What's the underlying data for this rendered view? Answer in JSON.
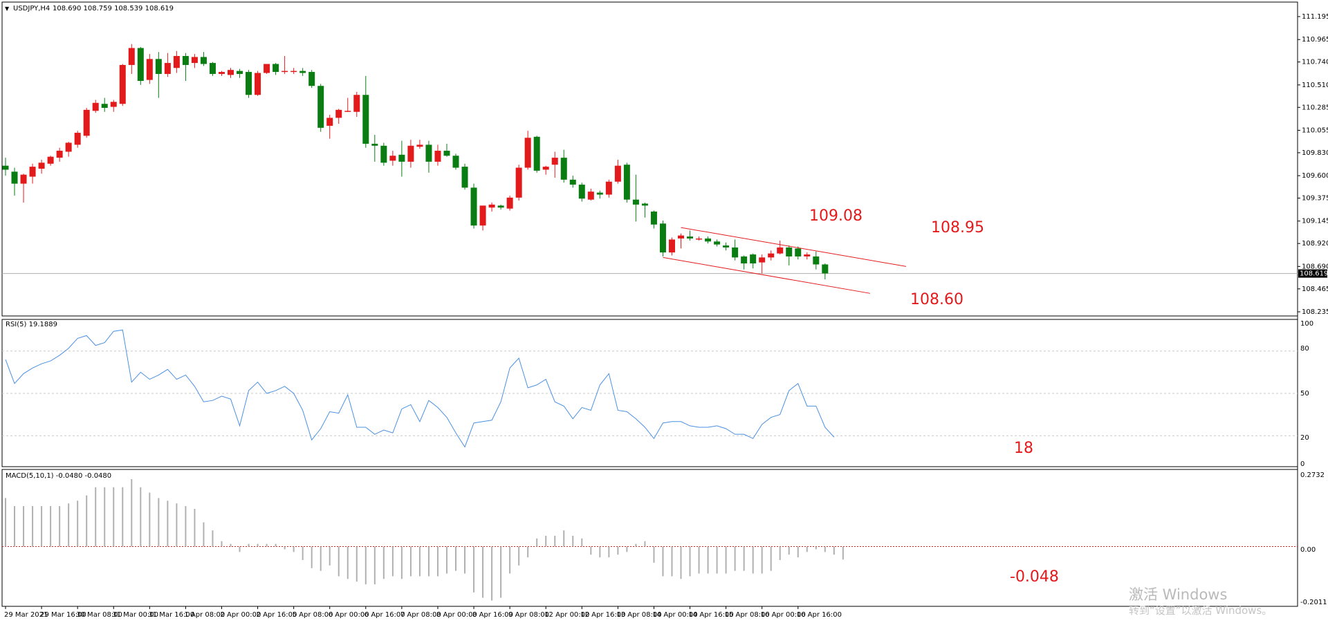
{
  "window_title": "USDJPY,H4",
  "ohlc_readout": "108.690 108.759 108.539 108.619",
  "colors": {
    "bull": "#e31a1c",
    "bear": "#0a7d12",
    "grid": "#c8c8c8",
    "rsi_line": "#4a90e2",
    "annotation": "#e31a1c",
    "channel": "#e31a1c",
    "macd_bar": "#b0b0b0",
    "macd_zero": "#e31a1c",
    "price_line": "#b0b0b0"
  },
  "price_axis": {
    "ticks": [
      "111.195",
      "110.965",
      "110.740",
      "110.510",
      "110.285",
      "110.055",
      "109.830",
      "109.600",
      "109.375",
      "109.145",
      "108.920",
      "108.690",
      "108.465",
      "108.235"
    ],
    "current_price": "108.619"
  },
  "rsi": {
    "label": "RSI(5) 19.1889",
    "ticks": [
      "100",
      "80",
      "50",
      "20",
      "0"
    ]
  },
  "macd": {
    "label": "MACD(5,10,1) -0.0480 -0.0480",
    "ticks": [
      "0.2732",
      "0.00",
      "-0.2011"
    ]
  },
  "time_axis": [
    "29 Mar 2021",
    "29 Mar 16:00",
    "30 Mar 08:00",
    "31 Mar 00:00",
    "31 Mar 16:00",
    "1 Apr 08:00",
    "2 Apr 00:00",
    "2 Apr 16:00",
    "5 Apr 08:00",
    "6 Apr 00:00",
    "6 Apr 16:00",
    "7 Apr 08:00",
    "8 Apr 00:00",
    "8 Apr 16:00",
    "9 Apr 08:00",
    "12 Apr 00:00",
    "12 Apr 16:00",
    "13 Apr 08:00",
    "14 Apr 00:00",
    "14 Apr 16:00",
    "15 Apr 08:00",
    "16 Apr 00:00",
    "16 Apr 16:00"
  ],
  "annotations": {
    "high1": "109.08",
    "high2": "108.95",
    "low": "108.60",
    "rsi_value": "18",
    "macd_value": "-0.048"
  },
  "watermark": {
    "line1": "激活 Windows",
    "line2": "转到“设置”以激活 Windows。"
  },
  "chart_data": [
    {
      "type": "candlestick",
      "title": "USDJPY,H4",
      "ylim": [
        108.235,
        111.195
      ],
      "candles": [
        {
          "o": 109.7,
          "h": 109.78,
          "l": 109.6,
          "c": 109.66
        },
        {
          "o": 109.64,
          "h": 109.68,
          "l": 109.4,
          "c": 109.52
        },
        {
          "o": 109.52,
          "h": 109.62,
          "l": 109.33,
          "c": 109.61
        },
        {
          "o": 109.59,
          "h": 109.72,
          "l": 109.52,
          "c": 109.69
        },
        {
          "o": 109.67,
          "h": 109.76,
          "l": 109.62,
          "c": 109.73
        },
        {
          "o": 109.72,
          "h": 109.8,
          "l": 109.7,
          "c": 109.79
        },
        {
          "o": 109.78,
          "h": 109.88,
          "l": 109.74,
          "c": 109.85
        },
        {
          "o": 109.84,
          "h": 109.94,
          "l": 109.79,
          "c": 109.93
        },
        {
          "o": 109.91,
          "h": 110.05,
          "l": 109.88,
          "c": 110.03
        },
        {
          "o": 110.0,
          "h": 110.28,
          "l": 109.98,
          "c": 110.26
        },
        {
          "o": 110.25,
          "h": 110.36,
          "l": 110.23,
          "c": 110.33
        },
        {
          "o": 110.32,
          "h": 110.38,
          "l": 110.24,
          "c": 110.28
        },
        {
          "o": 110.29,
          "h": 110.36,
          "l": 110.24,
          "c": 110.34
        },
        {
          "o": 110.32,
          "h": 110.72,
          "l": 110.3,
          "c": 110.71
        },
        {
          "o": 110.71,
          "h": 110.92,
          "l": 110.62,
          "c": 110.88
        },
        {
          "o": 110.88,
          "h": 110.89,
          "l": 110.51,
          "c": 110.55
        },
        {
          "o": 110.56,
          "h": 110.82,
          "l": 110.52,
          "c": 110.77
        },
        {
          "o": 110.77,
          "h": 110.84,
          "l": 110.38,
          "c": 110.62
        },
        {
          "o": 110.62,
          "h": 110.83,
          "l": 110.59,
          "c": 110.73
        },
        {
          "o": 110.68,
          "h": 110.85,
          "l": 110.63,
          "c": 110.8
        },
        {
          "o": 110.8,
          "h": 110.83,
          "l": 110.55,
          "c": 110.71
        },
        {
          "o": 110.73,
          "h": 110.82,
          "l": 110.68,
          "c": 110.79
        },
        {
          "o": 110.79,
          "h": 110.84,
          "l": 110.7,
          "c": 110.72
        },
        {
          "o": 110.73,
          "h": 110.74,
          "l": 110.6,
          "c": 110.62
        },
        {
          "o": 110.62,
          "h": 110.65,
          "l": 110.6,
          "c": 110.64
        },
        {
          "o": 110.61,
          "h": 110.68,
          "l": 110.58,
          "c": 110.66
        },
        {
          "o": 110.65,
          "h": 110.67,
          "l": 110.58,
          "c": 110.62
        },
        {
          "o": 110.64,
          "h": 110.66,
          "l": 110.38,
          "c": 110.41
        },
        {
          "o": 110.41,
          "h": 110.65,
          "l": 110.4,
          "c": 110.63
        },
        {
          "o": 110.63,
          "h": 110.72,
          "l": 110.62,
          "c": 110.72
        },
        {
          "o": 110.72,
          "h": 110.73,
          "l": 110.61,
          "c": 110.64
        },
        {
          "o": 110.64,
          "h": 110.8,
          "l": 110.62,
          "c": 110.65
        },
        {
          "o": 110.64,
          "h": 110.68,
          "l": 110.62,
          "c": 110.65
        },
        {
          "o": 110.65,
          "h": 110.68,
          "l": 110.6,
          "c": 110.63
        },
        {
          "o": 110.64,
          "h": 110.66,
          "l": 110.48,
          "c": 110.5
        },
        {
          "o": 110.5,
          "h": 110.52,
          "l": 110.04,
          "c": 110.08
        },
        {
          "o": 110.1,
          "h": 110.21,
          "l": 109.97,
          "c": 110.18
        },
        {
          "o": 110.18,
          "h": 110.27,
          "l": 110.12,
          "c": 110.26
        },
        {
          "o": 110.25,
          "h": 110.38,
          "l": 110.24,
          "c": 110.25
        },
        {
          "o": 110.24,
          "h": 110.44,
          "l": 110.19,
          "c": 110.41
        },
        {
          "o": 110.41,
          "h": 110.6,
          "l": 109.88,
          "c": 109.92
        },
        {
          "o": 109.92,
          "h": 110.01,
          "l": 109.74,
          "c": 109.9
        },
        {
          "o": 109.9,
          "h": 109.93,
          "l": 109.7,
          "c": 109.73
        },
        {
          "o": 109.75,
          "h": 109.85,
          "l": 109.7,
          "c": 109.8
        },
        {
          "o": 109.81,
          "h": 109.95,
          "l": 109.59,
          "c": 109.74
        },
        {
          "o": 109.74,
          "h": 109.96,
          "l": 109.68,
          "c": 109.9
        },
        {
          "o": 109.89,
          "h": 109.96,
          "l": 109.87,
          "c": 109.91
        },
        {
          "o": 109.91,
          "h": 109.95,
          "l": 109.63,
          "c": 109.74
        },
        {
          "o": 109.74,
          "h": 109.91,
          "l": 109.7,
          "c": 109.85
        },
        {
          "o": 109.85,
          "h": 109.92,
          "l": 109.79,
          "c": 109.8
        },
        {
          "o": 109.8,
          "h": 109.82,
          "l": 109.66,
          "c": 109.68
        },
        {
          "o": 109.69,
          "h": 109.72,
          "l": 109.46,
          "c": 109.48
        },
        {
          "o": 109.48,
          "h": 109.52,
          "l": 109.07,
          "c": 109.1
        },
        {
          "o": 109.1,
          "h": 109.3,
          "l": 109.05,
          "c": 109.3
        },
        {
          "o": 109.28,
          "h": 109.33,
          "l": 109.24,
          "c": 109.31
        },
        {
          "o": 109.3,
          "h": 109.31,
          "l": 109.26,
          "c": 109.28
        },
        {
          "o": 109.27,
          "h": 109.4,
          "l": 109.25,
          "c": 109.38
        },
        {
          "o": 109.38,
          "h": 109.71,
          "l": 109.35,
          "c": 109.68
        },
        {
          "o": 109.68,
          "h": 110.05,
          "l": 109.66,
          "c": 109.98
        },
        {
          "o": 109.99,
          "h": 110.0,
          "l": 109.63,
          "c": 109.65
        },
        {
          "o": 109.66,
          "h": 109.7,
          "l": 109.61,
          "c": 109.69
        },
        {
          "o": 109.71,
          "h": 109.84,
          "l": 109.58,
          "c": 109.78
        },
        {
          "o": 109.78,
          "h": 109.86,
          "l": 109.53,
          "c": 109.56
        },
        {
          "o": 109.56,
          "h": 109.6,
          "l": 109.48,
          "c": 109.51
        },
        {
          "o": 109.51,
          "h": 109.53,
          "l": 109.34,
          "c": 109.37
        },
        {
          "o": 109.36,
          "h": 109.47,
          "l": 109.35,
          "c": 109.44
        },
        {
          "o": 109.43,
          "h": 109.45,
          "l": 109.37,
          "c": 109.41
        },
        {
          "o": 109.41,
          "h": 109.56,
          "l": 109.38,
          "c": 109.54
        },
        {
          "o": 109.54,
          "h": 109.76,
          "l": 109.52,
          "c": 109.7
        },
        {
          "o": 109.71,
          "h": 109.73,
          "l": 109.33,
          "c": 109.36
        },
        {
          "o": 109.36,
          "h": 109.61,
          "l": 109.14,
          "c": 109.31
        },
        {
          "o": 109.32,
          "h": 109.33,
          "l": 109.18,
          "c": 109.3
        },
        {
          "o": 109.24,
          "h": 109.25,
          "l": 109.07,
          "c": 109.11
        },
        {
          "o": 109.12,
          "h": 109.15,
          "l": 108.79,
          "c": 108.83
        },
        {
          "o": 108.83,
          "h": 108.98,
          "l": 108.8,
          "c": 108.96
        },
        {
          "o": 108.97,
          "h": 109.02,
          "l": 108.87,
          "c": 109.0
        },
        {
          "o": 108.99,
          "h": 109.05,
          "l": 108.95,
          "c": 108.97
        },
        {
          "o": 108.97,
          "h": 108.99,
          "l": 108.95,
          "c": 108.97
        },
        {
          "o": 108.97,
          "h": 108.99,
          "l": 108.92,
          "c": 108.94
        },
        {
          "o": 108.94,
          "h": 108.96,
          "l": 108.89,
          "c": 108.91
        },
        {
          "o": 108.9,
          "h": 108.93,
          "l": 108.85,
          "c": 108.88
        },
        {
          "o": 108.88,
          "h": 108.96,
          "l": 108.75,
          "c": 108.78
        },
        {
          "o": 108.79,
          "h": 108.8,
          "l": 108.66,
          "c": 108.72
        },
        {
          "o": 108.81,
          "h": 108.82,
          "l": 108.67,
          "c": 108.72
        },
        {
          "o": 108.73,
          "h": 108.81,
          "l": 108.62,
          "c": 108.78
        },
        {
          "o": 108.78,
          "h": 108.85,
          "l": 108.75,
          "c": 108.82
        },
        {
          "o": 108.82,
          "h": 108.95,
          "l": 108.81,
          "c": 108.88
        },
        {
          "o": 108.88,
          "h": 108.9,
          "l": 108.7,
          "c": 108.79
        },
        {
          "o": 108.87,
          "h": 108.89,
          "l": 108.76,
          "c": 108.79
        },
        {
          "o": 108.79,
          "h": 108.83,
          "l": 108.76,
          "c": 108.81
        },
        {
          "o": 108.79,
          "h": 108.84,
          "l": 108.66,
          "c": 108.71
        },
        {
          "o": 108.71,
          "h": 108.72,
          "l": 108.56,
          "c": 108.62
        }
      ],
      "channel": {
        "upper": [
          [
            75,
            109.08
          ],
          [
            100,
            108.69
          ]
        ],
        "lower": [
          [
            73,
            108.78
          ],
          [
            96,
            108.42
          ]
        ]
      }
    },
    {
      "type": "line",
      "title": "RSI(5) 19.1889",
      "ylim": [
        0,
        100
      ],
      "gridlines": [
        80,
        50,
        20
      ],
      "values": [
        74,
        57,
        64,
        68,
        71,
        73,
        77,
        82,
        89,
        91,
        84,
        86,
        94,
        95,
        58,
        65,
        60,
        63,
        67,
        60,
        63,
        55,
        44,
        45,
        48,
        46,
        27,
        52,
        58,
        50,
        52,
        55,
        50,
        38,
        17,
        25,
        37,
        36,
        49,
        26,
        26,
        21,
        24,
        22,
        39,
        42,
        30,
        45,
        40,
        33,
        22,
        12,
        29,
        30,
        31,
        44,
        68,
        75,
        54,
        56,
        60,
        44,
        41,
        32,
        40,
        38,
        56,
        64,
        38,
        37,
        32,
        26,
        18,
        29,
        30,
        30,
        27,
        26,
        26,
        27,
        25,
        21,
        21,
        18,
        28,
        33,
        35,
        52,
        57,
        41,
        41,
        26,
        19
      ],
      "label_value": "18"
    },
    {
      "type": "bar",
      "title": "MACD(5,10,1) -0.0480 -0.0480",
      "ylim": [
        -0.2011,
        0.2732
      ],
      "values": [
        0.18,
        0.15,
        0.15,
        0.15,
        0.15,
        0.15,
        0.15,
        0.16,
        0.17,
        0.19,
        0.22,
        0.22,
        0.22,
        0.22,
        0.25,
        0.22,
        0.2,
        0.18,
        0.17,
        0.16,
        0.15,
        0.14,
        0.09,
        0.06,
        0.02,
        0.01,
        -0.02,
        0.01,
        0.01,
        0.01,
        0.01,
        -0.01,
        -0.02,
        -0.05,
        -0.08,
        -0.09,
        -0.07,
        -0.11,
        -0.12,
        -0.13,
        -0.14,
        -0.14,
        -0.12,
        -0.11,
        -0.12,
        -0.11,
        -0.11,
        -0.11,
        -0.11,
        -0.1,
        -0.09,
        -0.1,
        -0.17,
        -0.19,
        -0.2,
        -0.19,
        -0.1,
        -0.07,
        -0.04,
        0.03,
        0.04,
        0.04,
        0.06,
        0.04,
        0.03,
        -0.03,
        -0.04,
        -0.04,
        -0.03,
        -0.02,
        0.01,
        0.02,
        -0.06,
        -0.11,
        -0.11,
        -0.12,
        -0.11,
        -0.1,
        -0.1,
        -0.1,
        -0.1,
        -0.09,
        -0.09,
        -0.1,
        -0.1,
        -0.09,
        -0.05,
        -0.03,
        -0.04,
        -0.02,
        -0.01,
        -0.02,
        -0.03,
        -0.048
      ],
      "label_value": "-0.048"
    }
  ]
}
